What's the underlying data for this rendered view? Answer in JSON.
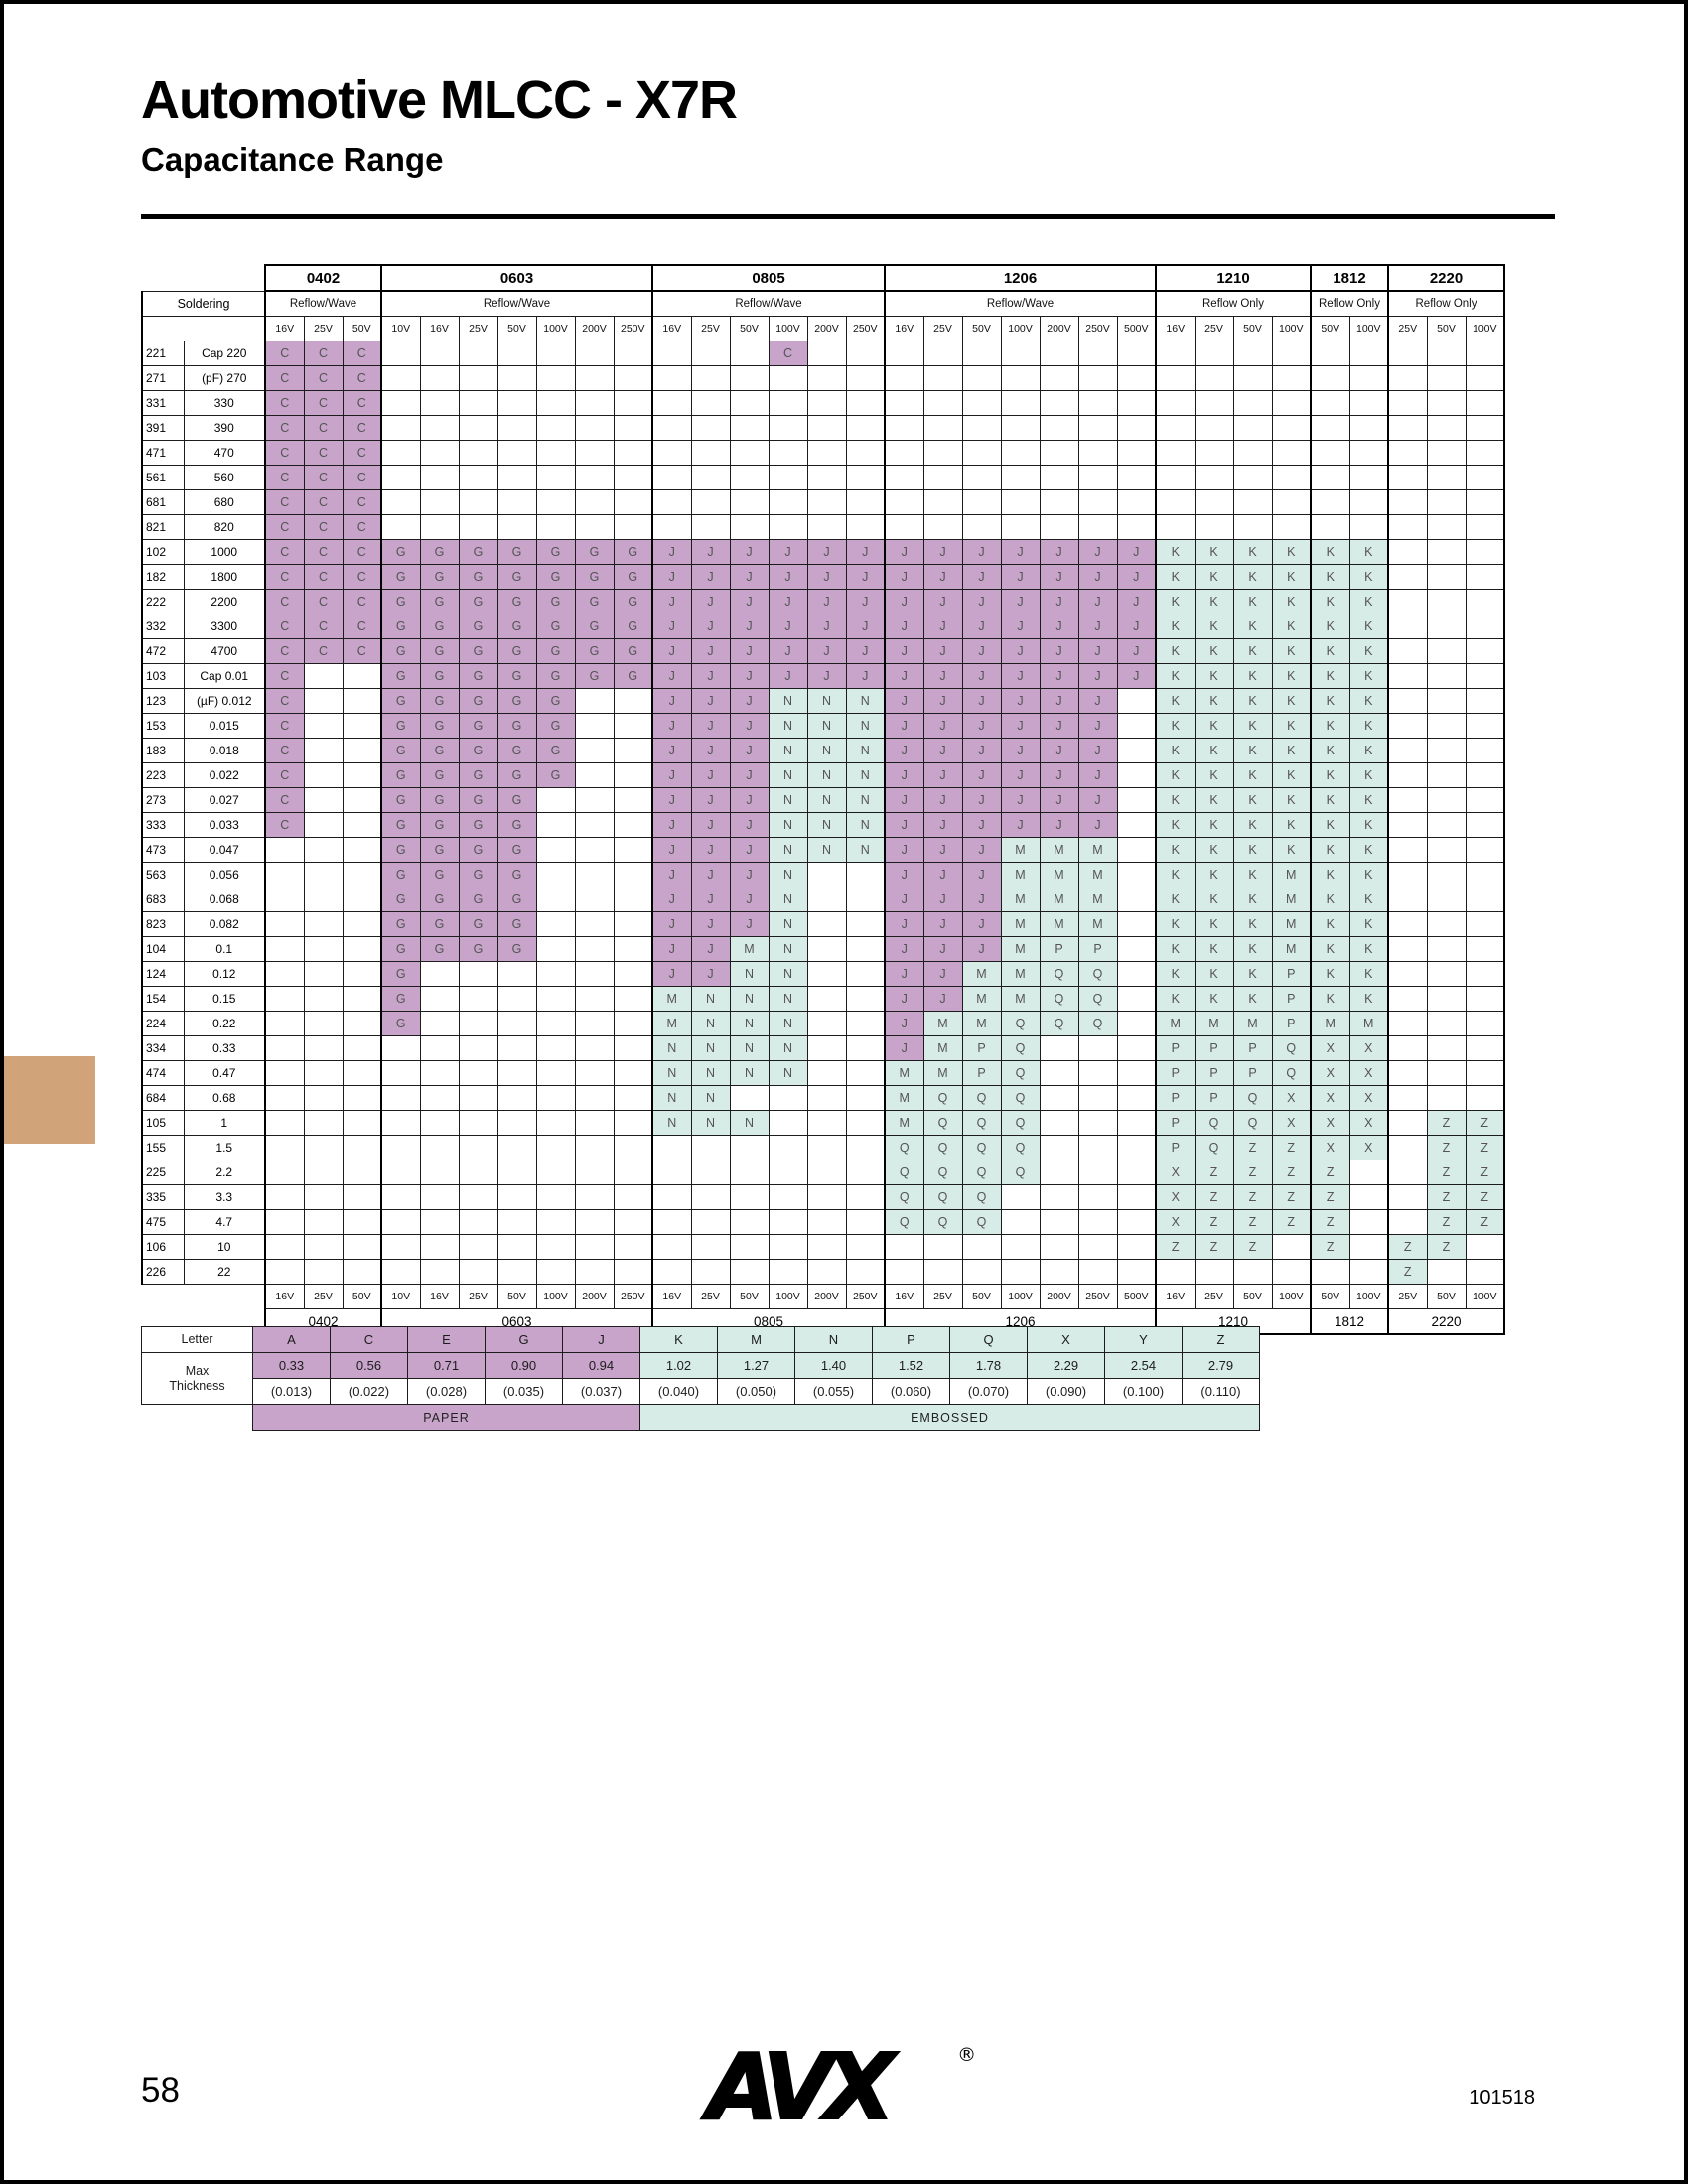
{
  "page": {
    "title": "Automotive MLCC - X7R",
    "subtitle": "Capacitance Range"
  },
  "colors": {
    "paper": "#C8A4CA",
    "embossed": "#D8ECE7",
    "tab": "#D0A378"
  },
  "table": {
    "soldering_label": "Soldering",
    "paper_letters": [
      "A",
      "C",
      "E",
      "G",
      "J"
    ],
    "groups": [
      {
        "name": "0402",
        "soldering": "Reflow/Wave",
        "voltages": [
          "16V",
          "25V",
          "50V"
        ]
      },
      {
        "name": "0603",
        "soldering": "Reflow/Wave",
        "voltages": [
          "10V",
          "16V",
          "25V",
          "50V",
          "100V",
          "200V",
          "250V"
        ]
      },
      {
        "name": "0805",
        "soldering": "Reflow/Wave",
        "voltages": [
          "16V",
          "25V",
          "50V",
          "100V",
          "200V",
          "250V"
        ]
      },
      {
        "name": "1206",
        "soldering": "Reflow/Wave",
        "voltages": [
          "16V",
          "25V",
          "50V",
          "100V",
          "200V",
          "250V",
          "500V"
        ]
      },
      {
        "name": "1210",
        "soldering": "Reflow Only",
        "voltages": [
          "16V",
          "25V",
          "50V",
          "100V"
        ]
      },
      {
        "name": "1812",
        "soldering": "Reflow Only",
        "voltages": [
          "50V",
          "100V"
        ]
      },
      {
        "name": "2220",
        "soldering": "Reflow Only",
        "voltages": [
          "25V",
          "50V",
          "100V"
        ]
      }
    ],
    "rows": [
      {
        "code": "221",
        "cap": "Cap 220",
        "cells": {
          "0402": "CCC",
          "0805": "---C--"
        }
      },
      {
        "code": "271",
        "cap": "(pF) 270",
        "cells": {
          "0402": "CCC"
        }
      },
      {
        "code": "331",
        "cap": "330",
        "cells": {
          "0402": "CCC"
        }
      },
      {
        "code": "391",
        "cap": "390",
        "cells": {
          "0402": "CCC"
        }
      },
      {
        "code": "471",
        "cap": "470",
        "cells": {
          "0402": "CCC"
        }
      },
      {
        "code": "561",
        "cap": "560",
        "cells": {
          "0402": "CCC"
        }
      },
      {
        "code": "681",
        "cap": "680",
        "cells": {
          "0402": "CCC"
        }
      },
      {
        "code": "821",
        "cap": "820",
        "cells": {
          "0402": "CCC"
        }
      },
      {
        "code": "102",
        "cap": "1000",
        "cells": {
          "0402": "CCC",
          "0603": "GGGGGGG",
          "0805": "JJJJJJ",
          "1206": "JJJJJJJ",
          "1210": "KKKK",
          "1812": "KK"
        }
      },
      {
        "code": "182",
        "cap": "1800",
        "cells": {
          "0402": "CCC",
          "0603": "GGGGGGG",
          "0805": "JJJJJJ",
          "1206": "JJJJJJJ",
          "1210": "KKKK",
          "1812": "KK"
        }
      },
      {
        "code": "222",
        "cap": "2200",
        "cells": {
          "0402": "CCC",
          "0603": "GGGGGGG",
          "0805": "JJJJJJ",
          "1206": "JJJJJJJ",
          "1210": "KKKK",
          "1812": "KK"
        }
      },
      {
        "code": "332",
        "cap": "3300",
        "cells": {
          "0402": "CCC",
          "0603": "GGGGGGG",
          "0805": "JJJJJJ",
          "1206": "JJJJJJJ",
          "1210": "KKKK",
          "1812": "KK"
        }
      },
      {
        "code": "472",
        "cap": "4700",
        "cells": {
          "0402": "CCC",
          "0603": "GGGGGGG",
          "0805": "JJJJJJ",
          "1206": "JJJJJJJ",
          "1210": "KKKK",
          "1812": "KK"
        }
      },
      {
        "code": "103",
        "cap": "Cap 0.01",
        "cells": {
          "0402": "C--",
          "0603": "GGGGGGG",
          "0805": "JJJJJJ",
          "1206": "JJJJJJJ",
          "1210": "KKKK",
          "1812": "KK"
        }
      },
      {
        "code": "123",
        "cap": "(µF) 0.012",
        "cells": {
          "0402": "C--",
          "0603": "GGGGG--",
          "0805": "JJJNNN",
          "1206": "JJJJJJ-",
          "1210": "KKKK",
          "1812": "KK"
        }
      },
      {
        "code": "153",
        "cap": "0.015",
        "cells": {
          "0402": "C--",
          "0603": "GGGGG--",
          "0805": "JJJNNN",
          "1206": "JJJJJJ-",
          "1210": "KKKK",
          "1812": "KK"
        }
      },
      {
        "code": "183",
        "cap": "0.018",
        "cells": {
          "0402": "C--",
          "0603": "GGGGG--",
          "0805": "JJJNNN",
          "1206": "JJJJJJ-",
          "1210": "KKKK",
          "1812": "KK"
        }
      },
      {
        "code": "223",
        "cap": "0.022",
        "cells": {
          "0402": "C--",
          "0603": "GGGGG--",
          "0805": "JJJNNN",
          "1206": "JJJJJJ-",
          "1210": "KKKK",
          "1812": "KK"
        }
      },
      {
        "code": "273",
        "cap": "0.027",
        "cells": {
          "0402": "C--",
          "0603": "GGGG---",
          "0805": "JJJNNN",
          "1206": "JJJJJJ-",
          "1210": "KKKK",
          "1812": "KK"
        }
      },
      {
        "code": "333",
        "cap": "0.033",
        "cells": {
          "0402": "C--",
          "0603": "GGGG---",
          "0805": "JJJNNN",
          "1206": "JJJJJJ-",
          "1210": "KKKK",
          "1812": "KK"
        }
      },
      {
        "code": "473",
        "cap": "0.047",
        "cells": {
          "0603": "GGGG---",
          "0805": "JJJNNN",
          "1206": "JJJMMM-",
          "1210": "KKKK",
          "1812": "KK"
        }
      },
      {
        "code": "563",
        "cap": "0.056",
        "cells": {
          "0603": "GGGG---",
          "0805": "JJJN--",
          "1206": "JJJMMM-",
          "1210": "KKKM",
          "1812": "KK"
        }
      },
      {
        "code": "683",
        "cap": "0.068",
        "cells": {
          "0603": "GGGG---",
          "0805": "JJJN--",
          "1206": "JJJMMM-",
          "1210": "KKKM",
          "1812": "KK"
        }
      },
      {
        "code": "823",
        "cap": "0.082",
        "cells": {
          "0603": "GGGG---",
          "0805": "JJJN--",
          "1206": "JJJMMM-",
          "1210": "KKKM",
          "1812": "KK"
        }
      },
      {
        "code": "104",
        "cap": "0.1",
        "cells": {
          "0603": "GGGG---",
          "0805": "JJMN--",
          "1206": "JJJMPP-",
          "1210": "KKKM",
          "1812": "KK"
        }
      },
      {
        "code": "124",
        "cap": "0.12",
        "cells": {
          "0603": "G------",
          "0805": "JJNN--",
          "1206": "JJMMQQ-",
          "1210": "KKKP",
          "1812": "KK"
        }
      },
      {
        "code": "154",
        "cap": "0.15",
        "cells": {
          "0603": "G------",
          "0805": "MNNN--",
          "1206": "JJMMQQ-",
          "1210": "KKKP",
          "1812": "KK"
        }
      },
      {
        "code": "224",
        "cap": "0.22",
        "cells": {
          "0603": "G------",
          "0805": "MNNN--",
          "1206": "JMMQQQ-",
          "1210": "MMMP",
          "1812": "MM"
        }
      },
      {
        "code": "334",
        "cap": "0.33",
        "cells": {
          "0805": "NNNN--",
          "1206": "JMPQ---",
          "1210": "PPPQ",
          "1812": "XX"
        }
      },
      {
        "code": "474",
        "cap": "0.47",
        "cells": {
          "0805": "NNNN--",
          "1206": "MMPQ---",
          "1210": "PPPQ",
          "1812": "XX"
        }
      },
      {
        "code": "684",
        "cap": "0.68",
        "cells": {
          "0805": "NN----",
          "1206": "MQQQ---",
          "1210": "PPQX",
          "1812": "XX"
        }
      },
      {
        "code": "105",
        "cap": "1",
        "cells": {
          "0805": "NNN---",
          "1206": "MQQQ---",
          "1210": "PQQX",
          "1812": "XX",
          "2220": "-ZZ"
        }
      },
      {
        "code": "155",
        "cap": "1.5",
        "cells": {
          "1206": "QQQQ---",
          "1210": "PQZZ",
          "1812": "XX",
          "2220": "-ZZ"
        }
      },
      {
        "code": "225",
        "cap": "2.2",
        "cells": {
          "1206": "QQQQ---",
          "1210": "XZZZ",
          "1812": "Z-",
          "2220": "-ZZ"
        }
      },
      {
        "code": "335",
        "cap": "3.3",
        "cells": {
          "1206": "QQQ----",
          "1210": "XZZZ",
          "1812": "Z-",
          "2220": "-ZZ"
        }
      },
      {
        "code": "475",
        "cap": "4.7",
        "cells": {
          "1206": "QQQ----",
          "1210": "XZZZ",
          "1812": "Z-",
          "2220": "-ZZ"
        }
      },
      {
        "code": "106",
        "cap": "10",
        "cells": {
          "1210": "ZZZ-",
          "1812": "Z-",
          "2220": "ZZ-"
        }
      },
      {
        "code": "226",
        "cap": "22",
        "cells": {
          "2220": "Z--"
        }
      }
    ]
  },
  "legend": {
    "labels": {
      "letter": "Letter",
      "max": "Max",
      "thickness": "Thickness"
    },
    "columns": [
      {
        "letter": "A",
        "max": "0.33",
        "thickness": "(0.013)"
      },
      {
        "letter": "C",
        "max": "0.56",
        "thickness": "(0.022)"
      },
      {
        "letter": "E",
        "max": "0.71",
        "thickness": "(0.028)"
      },
      {
        "letter": "G",
        "max": "0.90",
        "thickness": "(0.035)"
      },
      {
        "letter": "J",
        "max": "0.94",
        "thickness": "(0.037)"
      },
      {
        "letter": "K",
        "max": "1.02",
        "thickness": "(0.040)"
      },
      {
        "letter": "M",
        "max": "1.27",
        "thickness": "(0.050)"
      },
      {
        "letter": "N",
        "max": "1.40",
        "thickness": "(0.055)"
      },
      {
        "letter": "P",
        "max": "1.52",
        "thickness": "(0.060)"
      },
      {
        "letter": "Q",
        "max": "1.78",
        "thickness": "(0.070)"
      },
      {
        "letter": "X",
        "max": "2.29",
        "thickness": "(0.090)"
      },
      {
        "letter": "Y",
        "max": "2.54",
        "thickness": "(0.100)"
      },
      {
        "letter": "Z",
        "max": "2.79",
        "thickness": "(0.110)"
      }
    ],
    "categories": [
      {
        "label": "PAPER",
        "span": 5,
        "type": "paper"
      },
      {
        "label": "EMBOSSED",
        "span": 8,
        "type": "embossed"
      }
    ]
  },
  "footer": {
    "page_number": "58",
    "doc_number": "101518",
    "logo": "AVX",
    "registered": "®"
  }
}
